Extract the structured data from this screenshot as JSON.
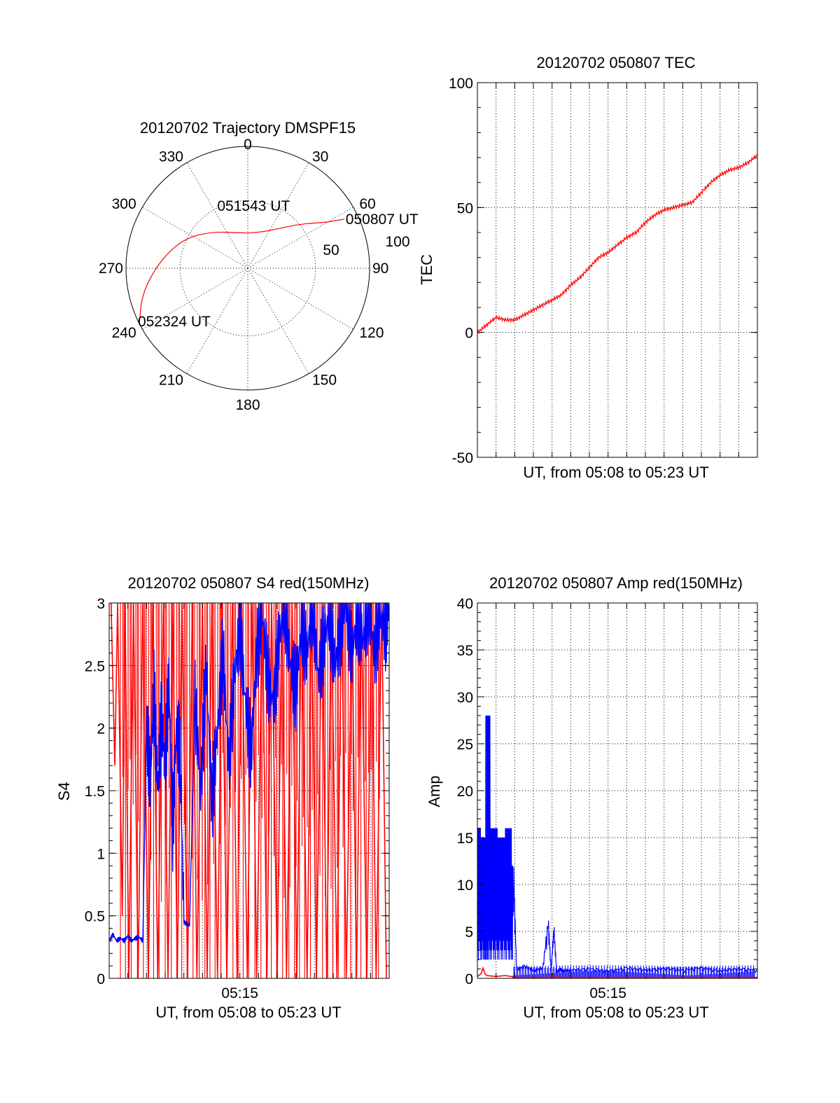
{
  "chart_data": [
    {
      "id": "trajectory",
      "type": "polar",
      "title": "20120702 Trajectory DMSPF15",
      "angle_labels": [
        "0",
        "30",
        "60",
        "90",
        "120",
        "150",
        "180",
        "210",
        "240",
        "270",
        "300",
        "330"
      ],
      "angles_deg": [
        0,
        30,
        60,
        90,
        120,
        150,
        180,
        210,
        240,
        270,
        300,
        330
      ],
      "radial_labels": [
        "50",
        "100"
      ],
      "radial_values": [
        50,
        100
      ],
      "rlim": [
        0,
        90
      ],
      "rlim_note": "",
      "grid": true,
      "series": [
        {
          "color": "#ff0000",
          "points": [
            {
              "az": 63,
              "r": 80
            },
            {
              "az": 60,
              "r": 68
            },
            {
              "az": 55,
              "r": 58
            },
            {
              "az": 48,
              "r": 48
            },
            {
              "az": 30,
              "r": 32
            },
            {
              "az": 5,
              "r": 26
            },
            {
              "az": -20,
              "r": 28
            },
            {
              "az": -45,
              "r": 38
            },
            {
              "az": -65,
              "r": 52
            },
            {
              "az": -85,
              "r": 65
            },
            {
              "az": -103,
              "r": 80
            },
            {
              "az": -117,
              "r": 90
            }
          ]
        }
      ],
      "annotations": [
        {
          "text": "050807 UT",
          "az": 63,
          "r": 80
        },
        {
          "text": "051543 UT",
          "az": 5,
          "r": 26
        },
        {
          "text": "052324 UT",
          "az": -117,
          "r": 90
        }
      ]
    },
    {
      "id": "tec",
      "type": "line",
      "title": "20120702 050807 TEC",
      "xlabel": "UT, from 05:08 to 05:23 UT",
      "ylabel": "TEC",
      "xlim": [
        0,
        15
      ],
      "ylim": [
        -50,
        100
      ],
      "yticks": [
        "-50",
        "0",
        "50",
        "100"
      ],
      "ytick_values": [
        -50,
        0,
        50,
        100
      ],
      "grid": true,
      "series": [
        {
          "color": "#ff0000",
          "x": [
            0,
            0.5,
            1,
            1.5,
            2,
            2.5,
            3,
            3.5,
            4,
            4.5,
            5,
            5.5,
            6,
            6.5,
            7,
            7.5,
            8,
            8.5,
            9,
            9.5,
            10,
            10.5,
            11,
            11.5,
            12,
            12.5,
            13,
            13.5,
            14,
            14.5,
            15
          ],
          "y": [
            0,
            3,
            6,
            5,
            5,
            7,
            9,
            11,
            13,
            15,
            19,
            22,
            26,
            30,
            32,
            35,
            38,
            40,
            44,
            47,
            49,
            50,
            51,
            52,
            56,
            60,
            63,
            65,
            66,
            68,
            71
          ]
        }
      ]
    },
    {
      "id": "s4",
      "type": "line",
      "title": "20120702 050807 S4 red(150MHz)",
      "xlabel": "UT, from 05:08 to 05:23 UT",
      "ylabel": "S4",
      "xticks": [
        "05:15"
      ],
      "xtick_values": [
        7
      ],
      "xlim": [
        0,
        15
      ],
      "ylim": [
        0,
        3
      ],
      "yticks": [
        "0",
        "0.5",
        "1",
        "1.5",
        "2",
        "2.5",
        "3"
      ],
      "ytick_values": [
        0,
        0.5,
        1,
        1.5,
        2,
        2.5,
        3
      ],
      "grid": true,
      "series": [
        {
          "color": "#ff0000",
          "x": [
            0.1,
            0.3,
            0.45,
            0.7,
            0.85,
            1.05,
            1.3,
            1.55,
            1.8,
            2.1,
            2.35,
            2.6,
            2.9,
            3.15,
            3.4,
            3.65,
            3.9,
            4.2,
            4.45,
            4.7,
            5.0,
            5.25,
            5.5,
            5.8,
            6.05,
            6.3,
            6.6,
            6.85,
            7.1,
            7.4,
            7.65,
            7.9,
            8.2,
            8.45,
            8.7,
            9.0,
            9.25,
            9.5,
            9.8,
            10.05,
            10.3,
            10.6,
            10.85,
            11.1,
            11.4,
            11.65,
            11.9,
            12.2,
            12.45,
            12.7,
            13.0,
            13.25,
            13.5,
            13.8,
            14.05,
            14.3,
            14.6,
            14.85
          ],
          "y": [
            3,
            1.7,
            3,
            0.5,
            3,
            0,
            3,
            0,
            3,
            0,
            3,
            0,
            3,
            0,
            3,
            0,
            3,
            0,
            3,
            0,
            3,
            0,
            3,
            0,
            3,
            0,
            3,
            0,
            3,
            0,
            3,
            0,
            3,
            0,
            3,
            0,
            3,
            0,
            3,
            0,
            3,
            0,
            3,
            0,
            3,
            0,
            3,
            0,
            3,
            0,
            3,
            0,
            3,
            0,
            3,
            0,
            3,
            0
          ]
        },
        {
          "color": "#0000ff",
          "x": [
            0,
            0.2,
            0.4,
            0.6,
            0.8,
            1.0,
            1.2,
            1.4,
            1.6,
            1.8,
            2.0,
            2.2,
            2.4,
            2.6,
            2.8,
            3.0,
            3.2,
            3.4,
            3.6,
            3.8,
            4.0,
            4.3,
            4.6,
            4.9,
            5.2,
            5.5,
            5.8,
            6.1,
            6.4,
            6.7,
            7.0,
            7.3,
            7.6,
            7.9,
            8.2,
            8.5,
            8.8,
            9.1,
            9.4,
            9.7,
            10.0,
            10.3,
            10.6,
            10.9,
            11.2,
            11.5,
            11.8,
            12.1,
            12.4,
            12.7,
            13.0,
            13.3,
            13.6,
            13.9,
            14.2,
            14.5,
            14.8,
            15.0
          ],
          "y": [
            0.3,
            0.35,
            0.3,
            0.32,
            0.3,
            0.34,
            0.3,
            0.32,
            0.33,
            0.3,
            2.0,
            1.6,
            2.3,
            1.5,
            2.1,
            1.7,
            2.4,
            1.2,
            2.0,
            1.8,
            0.45,
            0.42,
            2.2,
            1.5,
            2.5,
            1.4,
            2.0,
            2.6,
            1.7,
            2.4,
            2.8,
            2.2,
            1.8,
            2.6,
            2.9,
            2.4,
            2.2,
            2.7,
            3.0,
            2.5,
            2.3,
            2.8,
            2.6,
            3.0,
            2.4,
            2.7,
            2.9,
            2.5,
            2.8,
            3.0,
            2.6,
            2.9,
            2.7,
            3.0,
            2.6,
            2.9,
            2.8,
            3.0
          ]
        }
      ]
    },
    {
      "id": "amp",
      "type": "line",
      "title": "20120702 050807 Amp red(150MHz)",
      "xlabel": "UT, from 05:08 to 05:23 UT",
      "ylabel": "Amp",
      "xticks": [
        "05:15"
      ],
      "xtick_values": [
        7
      ],
      "xlim": [
        0,
        15
      ],
      "ylim": [
        0,
        40
      ],
      "yticks": [
        "0",
        "5",
        "10",
        "15",
        "20",
        "25",
        "30",
        "35",
        "40"
      ],
      "ytick_values": [
        0,
        5,
        10,
        15,
        20,
        25,
        30,
        35,
        40
      ],
      "grid": true,
      "series": [
        {
          "color": "#0000ff",
          "x": [
            0,
            0.2,
            0.35,
            0.45,
            0.55,
            0.7,
            0.9,
            1.1,
            1.3,
            1.5,
            1.7,
            1.85,
            1.95,
            2.1,
            2.5,
            3.0,
            3.5,
            3.8,
            3.95,
            4.1,
            4.25,
            4.45,
            4.6,
            5.0,
            6.0,
            7.0,
            8.0,
            9.0,
            10.0,
            11.0,
            12.0,
            13.0,
            14.0,
            15.0
          ],
          "y": [
            16,
            3,
            15,
            4,
            28,
            3,
            16,
            2,
            15,
            3,
            16,
            3,
            12,
            1,
            1.5,
            1,
            1.2,
            6.8,
            1,
            6,
            0.8,
            1.2,
            0.9,
            1,
            1.2,
            0.9,
            1.3,
            1,
            1.2,
            1,
            1.3,
            0.9,
            1.2,
            1
          ]
        },
        {
          "color": "#ff0000",
          "x": [
            0,
            0.2,
            0.3,
            0.4,
            0.5,
            1.0,
            1.5,
            1.8,
            2.0,
            3.8,
            4.0,
            4.2,
            4.4,
            15.0
          ],
          "y": [
            0.2,
            0.5,
            1.1,
            0.5,
            0.3,
            0.2,
            0.3,
            0.2,
            0.1,
            0.1,
            0.4,
            0.2,
            0.1,
            0.1
          ]
        }
      ]
    }
  ]
}
